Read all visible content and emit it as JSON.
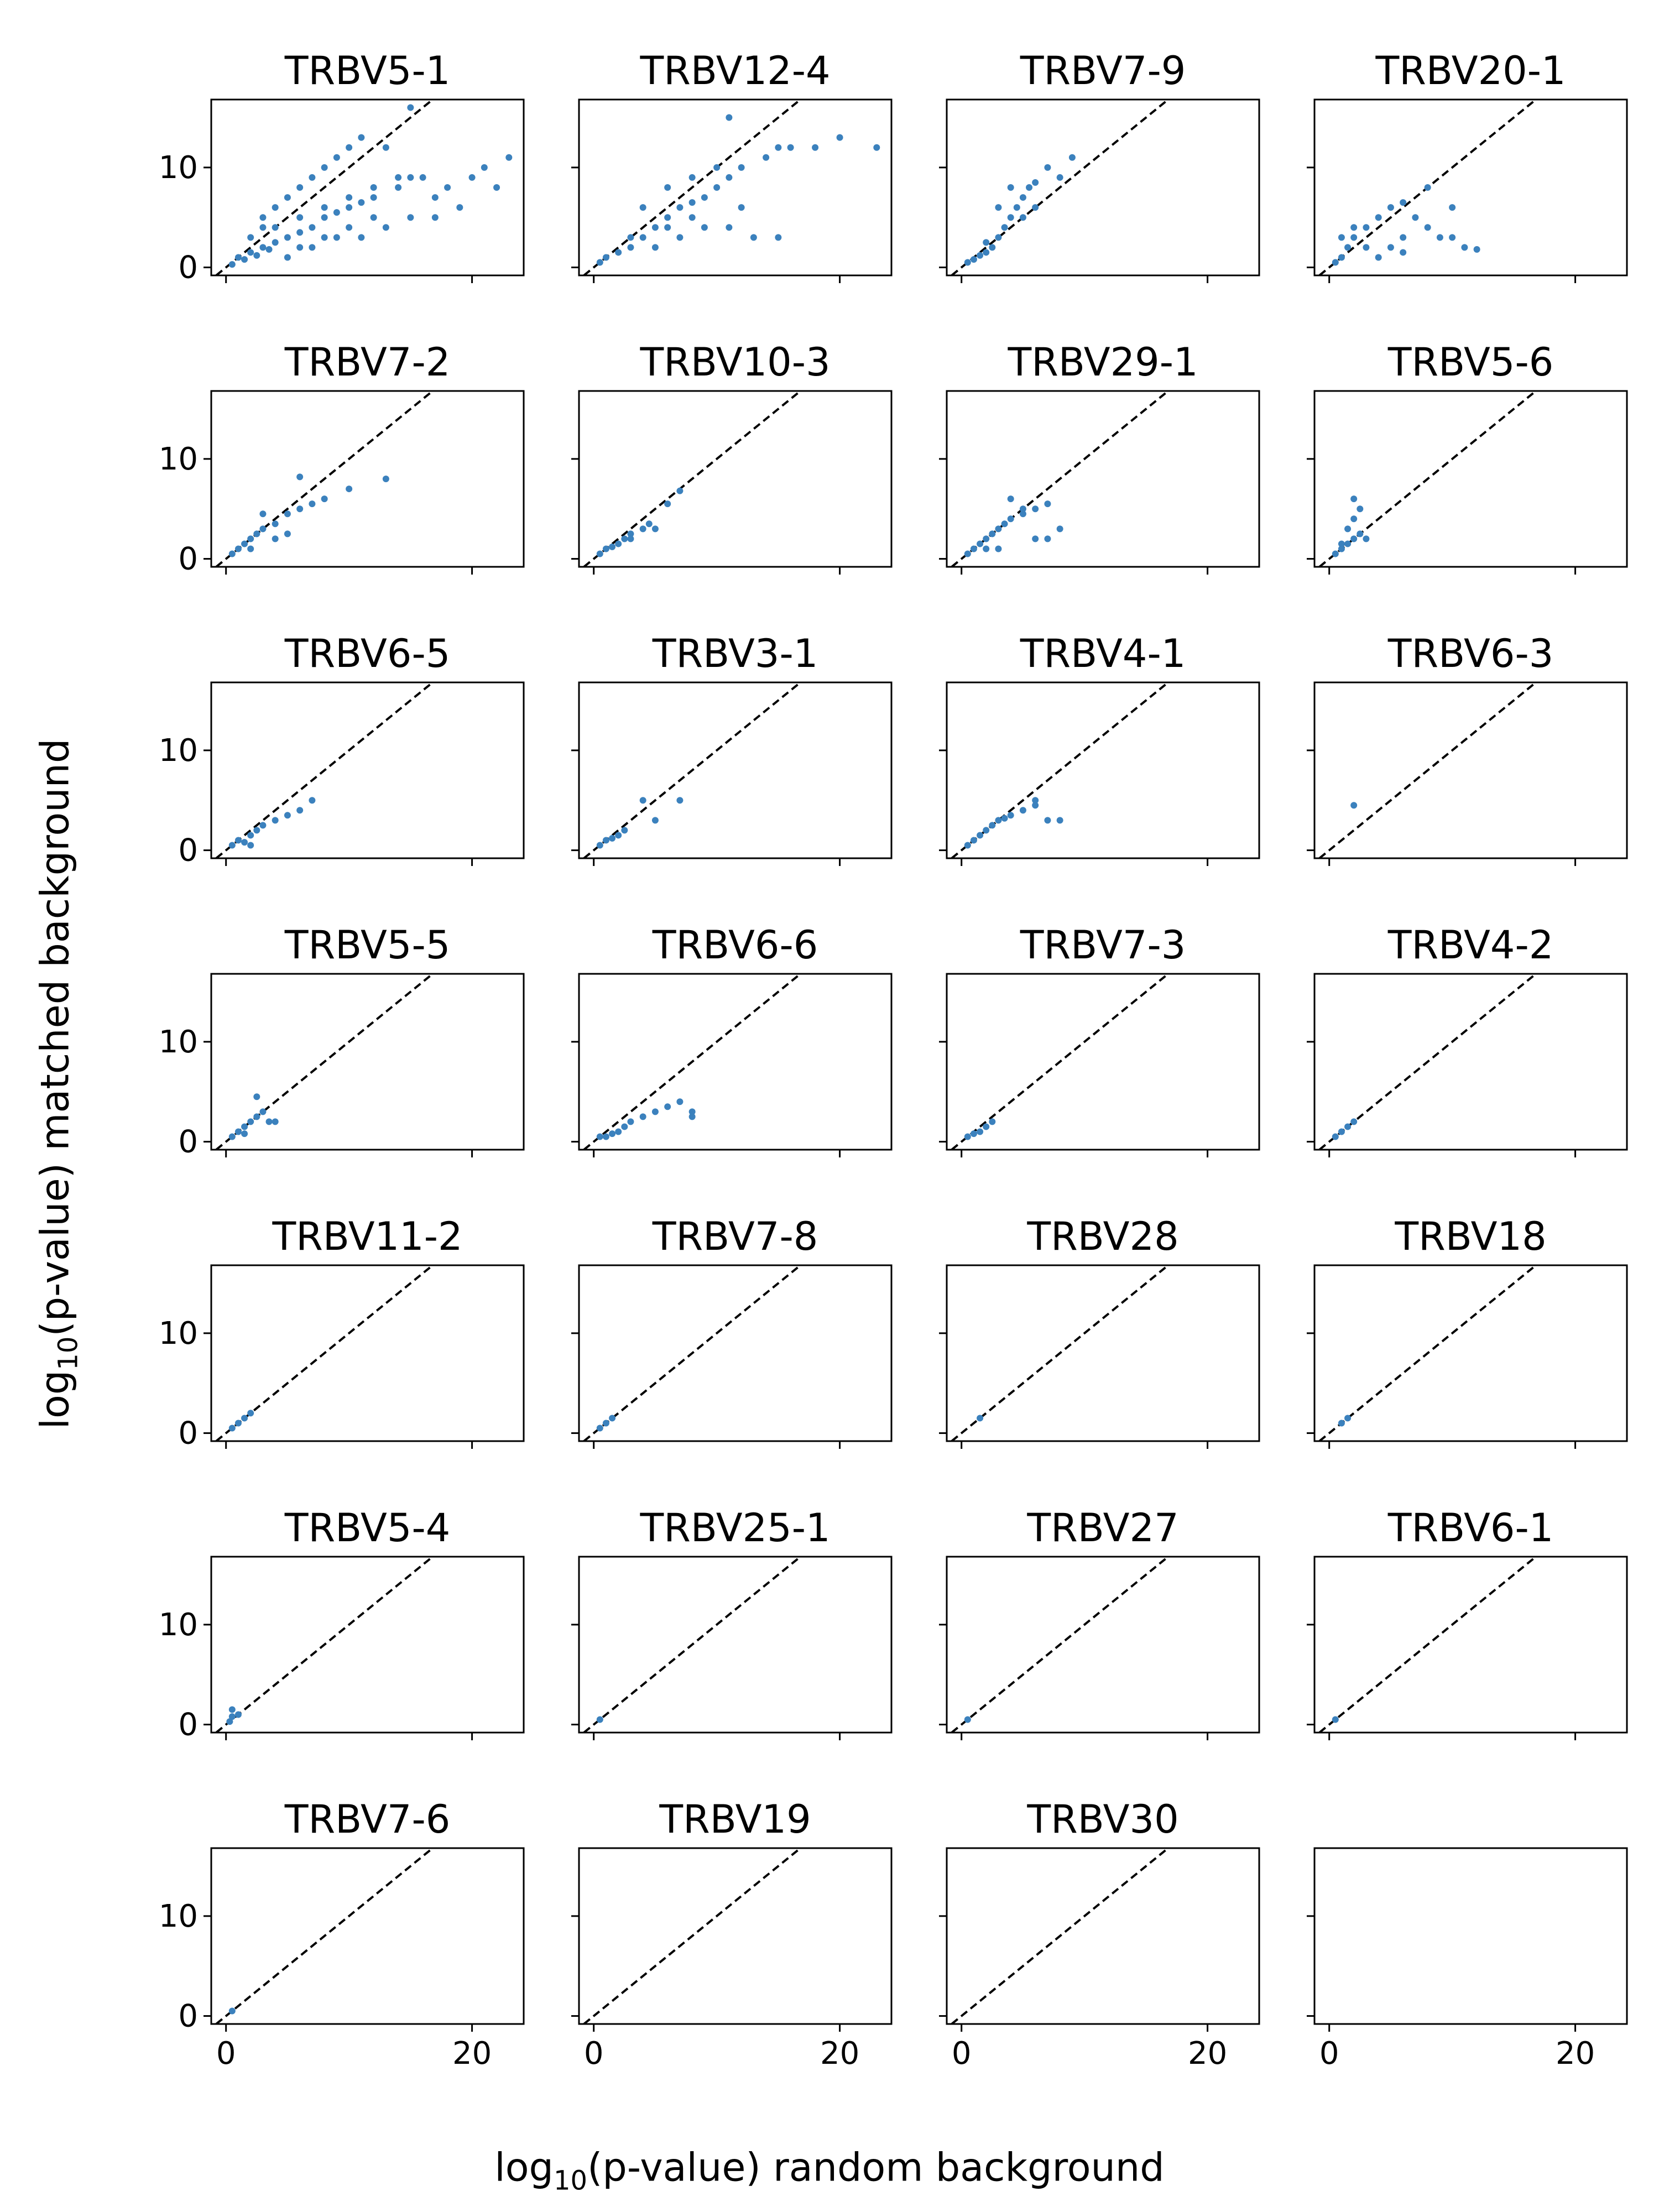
{
  "chart_data": {
    "type": "scatter",
    "layout": "small-multiples grid, 4 columns x 7 rows, shared axes",
    "xlabel": {
      "prefix": "log",
      "sub": "10",
      "suffix": "(p-value) random background"
    },
    "ylabel": {
      "prefix": "log",
      "sub": "10",
      "suffix": "(p-value) matched background"
    },
    "xlim": [
      -1.2,
      24.2
    ],
    "ylim": [
      -0.8,
      16.8
    ],
    "xticks": [
      0,
      20
    ],
    "yticks": [
      0,
      10
    ],
    "diagonal": "y = x, dashed black reference line",
    "grid": false,
    "point_color": "#3b81bd",
    "panels": [
      {
        "title": "TRBV5-1",
        "points": [
          [
            0.5,
            0.3
          ],
          [
            1,
            1
          ],
          [
            1.5,
            0.8
          ],
          [
            2,
            1.5
          ],
          [
            2.5,
            1.2
          ],
          [
            3,
            2
          ],
          [
            3.5,
            1.8
          ],
          [
            4,
            2.5
          ],
          [
            5,
            3
          ],
          [
            6,
            3.5
          ],
          [
            7,
            4
          ],
          [
            8,
            5
          ],
          [
            9,
            5.5
          ],
          [
            10,
            6
          ],
          [
            11,
            6.5
          ],
          [
            12,
            7
          ],
          [
            14,
            8
          ],
          [
            15,
            9
          ],
          [
            17,
            7
          ],
          [
            18,
            8
          ],
          [
            20,
            9
          ],
          [
            21,
            10
          ],
          [
            22,
            8
          ],
          [
            23,
            11
          ],
          [
            3,
            5
          ],
          [
            4,
            6
          ],
          [
            5,
            7
          ],
          [
            6,
            8
          ],
          [
            7,
            9
          ],
          [
            8,
            10
          ],
          [
            9,
            11
          ],
          [
            10,
            12
          ],
          [
            11,
            13
          ],
          [
            13,
            12
          ],
          [
            15,
            16
          ],
          [
            5,
            1
          ],
          [
            7,
            2
          ],
          [
            9,
            3
          ],
          [
            11,
            3
          ],
          [
            13,
            4
          ],
          [
            15,
            5
          ],
          [
            17,
            5
          ],
          [
            19,
            6
          ],
          [
            4,
            4
          ],
          [
            6,
            5
          ],
          [
            8,
            6
          ],
          [
            10,
            7
          ],
          [
            12,
            8
          ],
          [
            14,
            9
          ],
          [
            16,
            9
          ],
          [
            2,
            3
          ],
          [
            3,
            4
          ],
          [
            6,
            2
          ],
          [
            8,
            3
          ],
          [
            10,
            4
          ],
          [
            12,
            5
          ]
        ]
      },
      {
        "title": "TRBV12-4",
        "points": [
          [
            0.5,
            0.5
          ],
          [
            1,
            1
          ],
          [
            2,
            1.5
          ],
          [
            3,
            2
          ],
          [
            4,
            3
          ],
          [
            5,
            4
          ],
          [
            6,
            5
          ],
          [
            7,
            6
          ],
          [
            8,
            6.5
          ],
          [
            9,
            7
          ],
          [
            10,
            8
          ],
          [
            11,
            9
          ],
          [
            12,
            10
          ],
          [
            14,
            11
          ],
          [
            16,
            12
          ],
          [
            18,
            12
          ],
          [
            20,
            13
          ],
          [
            23,
            12
          ],
          [
            11,
            15
          ],
          [
            15,
            12
          ],
          [
            4,
            6
          ],
          [
            6,
            8
          ],
          [
            8,
            9
          ],
          [
            10,
            10
          ],
          [
            5,
            2
          ],
          [
            7,
            3
          ],
          [
            9,
            4
          ],
          [
            11,
            4
          ],
          [
            13,
            3
          ],
          [
            15,
            3
          ],
          [
            3,
            3
          ],
          [
            6,
            4
          ],
          [
            8,
            5
          ],
          [
            12,
            6
          ]
        ]
      },
      {
        "title": "TRBV7-9",
        "points": [
          [
            0.5,
            0.5
          ],
          [
            1,
            0.8
          ],
          [
            1.5,
            1.2
          ],
          [
            2,
            1.5
          ],
          [
            2.5,
            2
          ],
          [
            3,
            3
          ],
          [
            3.5,
            4
          ],
          [
            4,
            5
          ],
          [
            4.5,
            6
          ],
          [
            5,
            7
          ],
          [
            5.5,
            8
          ],
          [
            6,
            8.5
          ],
          [
            7,
            10
          ],
          [
            8,
            9
          ],
          [
            9,
            11
          ],
          [
            3,
            6
          ],
          [
            4,
            8
          ],
          [
            5,
            5
          ],
          [
            6,
            6
          ],
          [
            2,
            2.5
          ]
        ]
      },
      {
        "title": "TRBV20-1",
        "points": [
          [
            0.5,
            0.5
          ],
          [
            1,
            1
          ],
          [
            1.5,
            2
          ],
          [
            2,
            3
          ],
          [
            3,
            4
          ],
          [
            4,
            5
          ],
          [
            5,
            6
          ],
          [
            6,
            6.5
          ],
          [
            7,
            5
          ],
          [
            8,
            4
          ],
          [
            9,
            3
          ],
          [
            10,
            3
          ],
          [
            11,
            2
          ],
          [
            12,
            1.8
          ],
          [
            3,
            2
          ],
          [
            4,
            1
          ],
          [
            5,
            2
          ],
          [
            6,
            3
          ],
          [
            2,
            4
          ],
          [
            1,
            3
          ],
          [
            8,
            8
          ],
          [
            10,
            6
          ],
          [
            6,
            1.5
          ]
        ]
      },
      {
        "title": "TRBV7-2",
        "points": [
          [
            0.5,
            0.5
          ],
          [
            1,
            1
          ],
          [
            1.5,
            1.5
          ],
          [
            2,
            2
          ],
          [
            2.5,
            2.5
          ],
          [
            3,
            3
          ],
          [
            4,
            3.5
          ],
          [
            5,
            4.5
          ],
          [
            6,
            5
          ],
          [
            7,
            5.5
          ],
          [
            8,
            6
          ],
          [
            10,
            7
          ],
          [
            13,
            8
          ],
          [
            6,
            8.2
          ],
          [
            3,
            4.5
          ],
          [
            4,
            2
          ],
          [
            5,
            2.5
          ],
          [
            2,
            1
          ]
        ]
      },
      {
        "title": "TRBV10-3",
        "points": [
          [
            0.5,
            0.5
          ],
          [
            1,
            1
          ],
          [
            1.5,
            1.2
          ],
          [
            2,
            1.5
          ],
          [
            2.5,
            2
          ],
          [
            3,
            2.5
          ],
          [
            4,
            3
          ],
          [
            4.5,
            3.5
          ],
          [
            5,
            3
          ],
          [
            6,
            5.5
          ],
          [
            7,
            6.8
          ],
          [
            3,
            2
          ]
        ]
      },
      {
        "title": "TRBV29-1",
        "points": [
          [
            0.5,
            0.5
          ],
          [
            1,
            1
          ],
          [
            1.5,
            1.5
          ],
          [
            2,
            2
          ],
          [
            2.5,
            2.5
          ],
          [
            3,
            3
          ],
          [
            3.5,
            3.5
          ],
          [
            4,
            4
          ],
          [
            5,
            4.5
          ],
          [
            6,
            5
          ],
          [
            7,
            5.5
          ],
          [
            4,
            6
          ],
          [
            5,
            5
          ],
          [
            6,
            2
          ],
          [
            7,
            2
          ],
          [
            8,
            3
          ],
          [
            3,
            1
          ],
          [
            2,
            1
          ]
        ]
      },
      {
        "title": "TRBV5-6",
        "points": [
          [
            0.5,
            0.5
          ],
          [
            1,
            1
          ],
          [
            1.5,
            1.5
          ],
          [
            2,
            2
          ],
          [
            2.5,
            2.5
          ],
          [
            1.5,
            3
          ],
          [
            2,
            4
          ],
          [
            2.5,
            5
          ],
          [
            2,
            6
          ],
          [
            3,
            2
          ],
          [
            1,
            1.5
          ]
        ]
      },
      {
        "title": "TRBV6-5",
        "points": [
          [
            0.5,
            0.5
          ],
          [
            1,
            1
          ],
          [
            1.5,
            0.8
          ],
          [
            2,
            1.5
          ],
          [
            2.5,
            2
          ],
          [
            3,
            2.5
          ],
          [
            4,
            3
          ],
          [
            5,
            3.5
          ],
          [
            6,
            4
          ],
          [
            7,
            5
          ],
          [
            2,
            0.5
          ]
        ]
      },
      {
        "title": "TRBV3-1",
        "points": [
          [
            0.5,
            0.5
          ],
          [
            1,
            1
          ],
          [
            1.5,
            1.2
          ],
          [
            2,
            1.5
          ],
          [
            2.5,
            2
          ],
          [
            4,
            5
          ],
          [
            5,
            3
          ],
          [
            7,
            5
          ]
        ]
      },
      {
        "title": "TRBV4-1",
        "points": [
          [
            0.5,
            0.5
          ],
          [
            1,
            1
          ],
          [
            1.5,
            1.5
          ],
          [
            2,
            2
          ],
          [
            2.5,
            2.5
          ],
          [
            3,
            3
          ],
          [
            3.5,
            3.2
          ],
          [
            4,
            3.5
          ],
          [
            5,
            4
          ],
          [
            6,
            4.5
          ],
          [
            7,
            3
          ],
          [
            8,
            3
          ],
          [
            6,
            5
          ]
        ]
      },
      {
        "title": "TRBV6-3",
        "points": [
          [
            2,
            4.5
          ]
        ]
      },
      {
        "title": "TRBV5-5",
        "points": [
          [
            0.5,
            0.5
          ],
          [
            1,
            1
          ],
          [
            1.5,
            1.5
          ],
          [
            2,
            2
          ],
          [
            2.5,
            2.5
          ],
          [
            3,
            3
          ],
          [
            3.5,
            2
          ],
          [
            4,
            2
          ],
          [
            2.5,
            4.5
          ],
          [
            1.5,
            0.8
          ]
        ]
      },
      {
        "title": "TRBV6-6",
        "points": [
          [
            0.5,
            0.5
          ],
          [
            1,
            0.5
          ],
          [
            1.5,
            0.8
          ],
          [
            2,
            1
          ],
          [
            2.5,
            1.5
          ],
          [
            3,
            2
          ],
          [
            4,
            2.5
          ],
          [
            5,
            3
          ],
          [
            6,
            3.5
          ],
          [
            7,
            4
          ],
          [
            8,
            3
          ],
          [
            8,
            2.5
          ]
        ]
      },
      {
        "title": "TRBV7-3",
        "points": [
          [
            0.5,
            0.5
          ],
          [
            1,
            0.8
          ],
          [
            1.5,
            1
          ],
          [
            2,
            1.5
          ],
          [
            2.5,
            2
          ]
        ]
      },
      {
        "title": "TRBV4-2",
        "points": [
          [
            0.5,
            0.5
          ],
          [
            1,
            1
          ],
          [
            1.5,
            1.5
          ],
          [
            2,
            2
          ]
        ]
      },
      {
        "title": "TRBV11-2",
        "points": [
          [
            0.5,
            0.5
          ],
          [
            1,
            1
          ],
          [
            1.5,
            1.5
          ],
          [
            2,
            2
          ]
        ]
      },
      {
        "title": "TRBV7-8",
        "points": [
          [
            0.5,
            0.5
          ],
          [
            1,
            1
          ],
          [
            1.5,
            1.5
          ]
        ]
      },
      {
        "title": "TRBV28",
        "points": [
          [
            1.5,
            1.5
          ]
        ]
      },
      {
        "title": "TRBV18",
        "points": [
          [
            1,
            1
          ],
          [
            1.5,
            1.5
          ]
        ]
      },
      {
        "title": "TRBV5-4",
        "points": [
          [
            0.3,
            0.3
          ],
          [
            0.5,
            0.8
          ],
          [
            1,
            1
          ],
          [
            0.5,
            1.5
          ]
        ]
      },
      {
        "title": "TRBV25-1",
        "points": [
          [
            0.5,
            0.5
          ]
        ]
      },
      {
        "title": "TRBV27",
        "points": [
          [
            0.5,
            0.5
          ]
        ]
      },
      {
        "title": "TRBV6-1",
        "points": [
          [
            0.5,
            0.5
          ]
        ]
      },
      {
        "title": "TRBV7-6",
        "points": [
          [
            0.5,
            0.5
          ]
        ]
      },
      {
        "title": "TRBV19",
        "points": []
      },
      {
        "title": "TRBV30",
        "points": []
      },
      {
        "title": "",
        "points": [],
        "empty": true
      }
    ]
  }
}
